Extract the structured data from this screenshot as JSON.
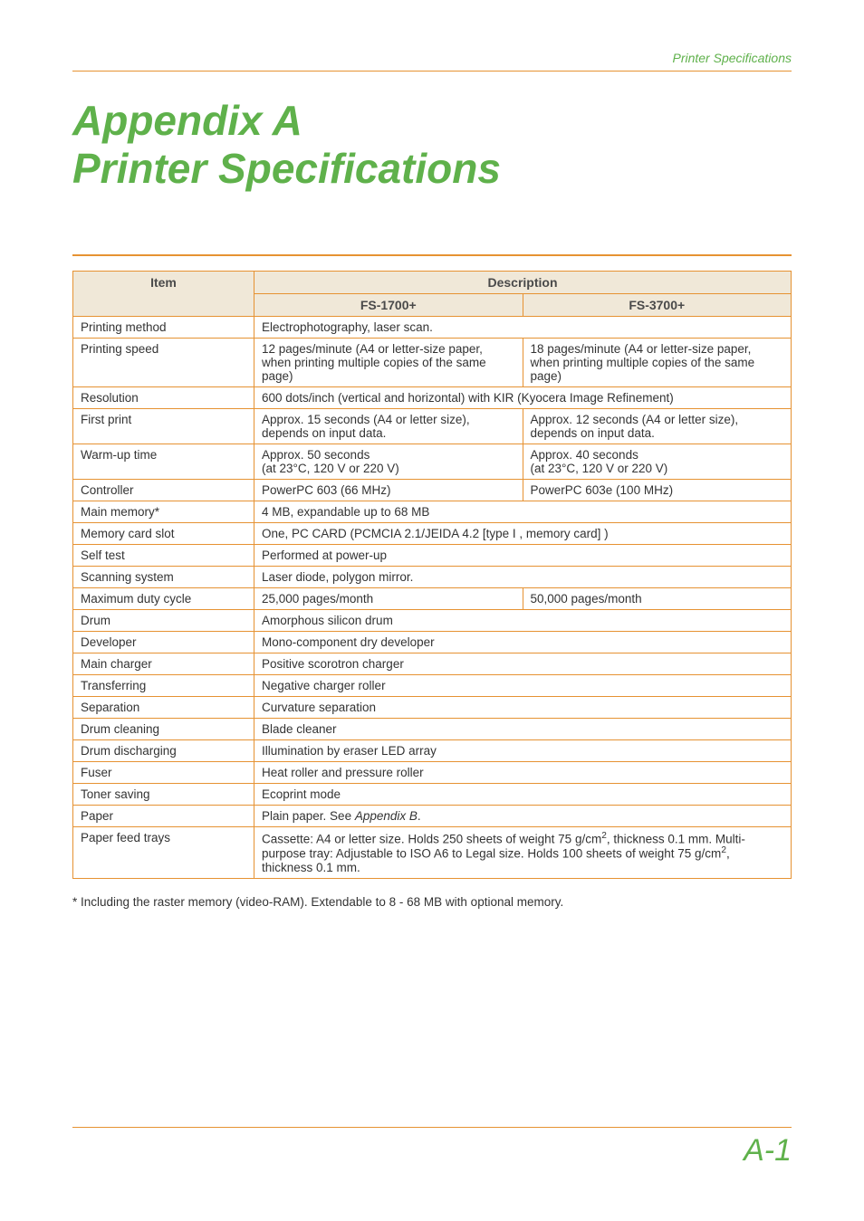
{
  "page": {
    "header_label": "Printer Specifications",
    "title_l1": "Appendix A",
    "title_l2": "Printer Specifications",
    "page_number": "A-1",
    "footnote": "* Including the raster memory (video-RAM). Extendable to 8 - 68 MB with optional memory."
  },
  "table": {
    "columns": {
      "item": "Item",
      "desc": "Description",
      "m1": "FS-1700+",
      "m2": "FS-3700+"
    },
    "col_widths": {
      "item": 200
    },
    "header_bg": "#f0e8d8",
    "border_color": "#e69232",
    "rows": [
      {
        "label": "Printing method",
        "span": true,
        "v1": "Electrophotography, laser scan."
      },
      {
        "label": "Printing speed",
        "span": false,
        "v1": "12 pages/minute (A4 or letter-size paper, when printing multiple copies of the same page)",
        "v2": "18 pages/minute (A4 or letter-size paper, when printing multiple copies of the same page)"
      },
      {
        "label": "Resolution",
        "span": true,
        "v1": "600 dots/inch (vertical and horizontal) with KIR (Kyocera Image Refinement)"
      },
      {
        "label": "First print",
        "span": false,
        "v1": "Approx. 15 seconds (A4 or letter size), depends on input data.",
        "v2": "Approx. 12 seconds (A4 or letter size), depends on input data."
      },
      {
        "label": "Warm-up time",
        "span": false,
        "v1": "Approx. 50 seconds\n(at 23°C, 120 V or 220 V)",
        "v2": "Approx. 40 seconds\n(at 23°C, 120 V or 220 V)"
      },
      {
        "label": "Controller",
        "span": false,
        "v1": "PowerPC 603 (66 MHz)",
        "v2": "PowerPC 603e (100 MHz)"
      },
      {
        "label": "Main memory*",
        "span": true,
        "v1": "4 MB, expandable up to 68 MB"
      },
      {
        "label": "Memory card slot",
        "span": true,
        "v1": "One, PC CARD (PCMCIA 2.1/JEIDA 4.2 [type I , memory card] )"
      },
      {
        "label": "Self test",
        "span": true,
        "v1": "Performed at power-up"
      },
      {
        "label": "Scanning system",
        "span": true,
        "v1": "Laser diode, polygon mirror."
      },
      {
        "label": "Maximum duty cycle",
        "span": false,
        "v1": "25,000 pages/month",
        "v2": "50,000 pages/month"
      },
      {
        "label": "Drum",
        "span": true,
        "v1": "Amorphous silicon drum"
      },
      {
        "label": "Developer",
        "span": true,
        "v1": "Mono-component dry developer"
      },
      {
        "label": "Main charger",
        "span": true,
        "v1": "Positive scorotron charger"
      },
      {
        "label": "Transferring",
        "span": true,
        "v1": "Negative charger roller"
      },
      {
        "label": "Separation",
        "span": true,
        "v1": "Curvature separation"
      },
      {
        "label": "Drum cleaning",
        "span": true,
        "v1": "Blade cleaner"
      },
      {
        "label": "Drum discharging",
        "span": true,
        "v1": "Illumination by eraser LED array"
      },
      {
        "label": "Fuser",
        "span": true,
        "v1": "Heat roller and pressure roller"
      },
      {
        "label": "Toner saving",
        "span": true,
        "v1": "Ecoprint mode"
      },
      {
        "label": "Paper",
        "span": true,
        "html": true,
        "v1": "Plain paper. See <span class=\"ital\">Appendix B</span>."
      },
      {
        "label": "Paper feed trays",
        "span": true,
        "html": true,
        "v1": "Cassette: A4 or letter size. Holds 250 sheets of weight 75 g/cm<sup>2</sup>, thickness 0.1 mm. Multi-purpose tray: Adjustable to ISO A6 to Legal size. Holds 100 sheets of weight 75 g/cm<sup>2</sup>, thickness 0.1 mm."
      }
    ]
  },
  "colors": {
    "accent_green": "#5fb14b",
    "accent_orange": "#e69232",
    "text": "#333333",
    "background": "#ffffff"
  },
  "typography": {
    "title_fontsize": 46,
    "header_label_fontsize": 14,
    "table_fontsize": 13.5,
    "pagenum_fontsize": 34
  }
}
